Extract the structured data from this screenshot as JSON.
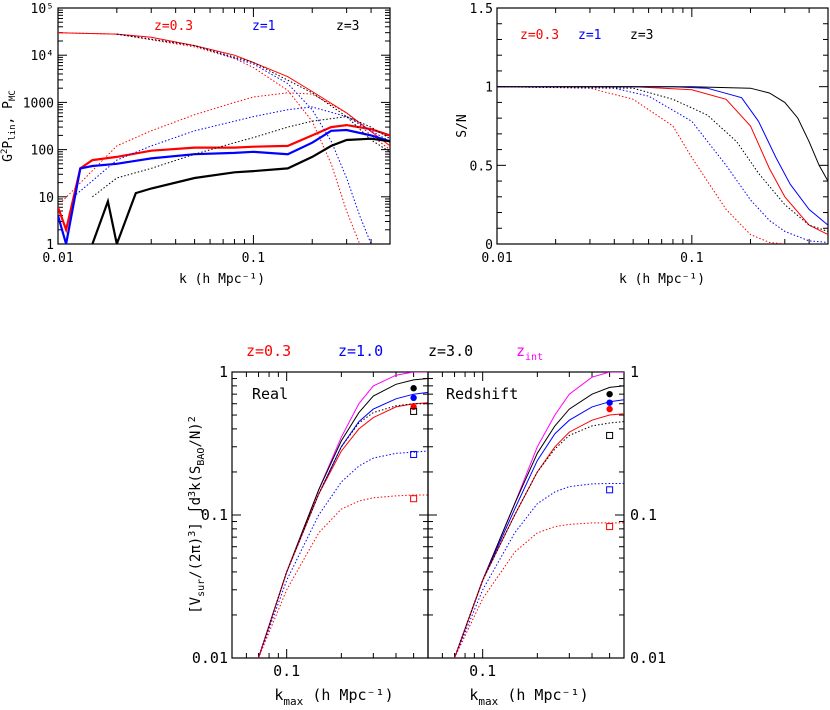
{
  "chart_data": [
    {
      "type": "line",
      "panel": "top-left",
      "xlabel": "k (h Mpc⁻¹)",
      "ylabel": "G²P_lin, P_MC",
      "xscale": "log",
      "yscale": "log",
      "xlim": [
        0.01,
        0.5
      ],
      "ylim": [
        1,
        100000
      ],
      "xticks": [
        "0.01",
        "0.1"
      ],
      "yticks": [
        "1",
        "10",
        "100",
        "1000",
        "10⁴",
        "10⁵"
      ],
      "legend": [
        "z=0.3",
        "z=1",
        "z=3"
      ],
      "colors": {
        "z=0.3": "#ff0000",
        "z=1": "#0000ff",
        "z=3": "#000000"
      },
      "series": [
        {
          "name": "z=0.3",
          "style": "solid-thin",
          "x": [
            0.01,
            0.02,
            0.03,
            0.05,
            0.08,
            0.1,
            0.15,
            0.2,
            0.3,
            0.5
          ],
          "y": [
            30000,
            28000,
            24000,
            16000,
            10000,
            7000,
            3500,
            1700,
            600,
            120
          ]
        },
        {
          "name": "z=0.3",
          "style": "dotted-damped",
          "x": [
            0.01,
            0.02,
            0.05,
            0.08,
            0.1,
            0.15,
            0.2,
            0.25,
            0.3,
            0.35
          ],
          "y": [
            30000,
            28000,
            15000,
            8500,
            5500,
            1800,
            400,
            50,
            5,
            1
          ]
        },
        {
          "name": "z=0.3",
          "style": "dotted-lower",
          "x": [
            0.0105,
            0.02,
            0.03,
            0.05,
            0.08,
            0.1,
            0.15,
            0.2,
            0.3,
            0.4,
            0.5
          ],
          "y": [
            8,
            120,
            250,
            550,
            1000,
            1300,
            1600,
            1500,
            600,
            200,
            100
          ]
        },
        {
          "name": "z=0.3",
          "style": "solid-thick",
          "x": [
            0.01,
            0.011,
            0.013,
            0.015,
            0.02,
            0.03,
            0.05,
            0.08,
            0.1,
            0.15,
            0.2,
            0.25,
            0.3,
            0.4,
            0.5
          ],
          "y": [
            6,
            2,
            40,
            60,
            70,
            95,
            110,
            110,
            115,
            120,
            200,
            300,
            330,
            270,
            200
          ]
        },
        {
          "name": "z=1",
          "style": "dotted-damped",
          "x": [
            0.02,
            0.05,
            0.1,
            0.15,
            0.2,
            0.25,
            0.3,
            0.35,
            0.4
          ],
          "y": [
            28000,
            16000,
            6500,
            2500,
            700,
            150,
            25,
            4,
            1
          ]
        },
        {
          "name": "z=1",
          "style": "dotted-lower",
          "x": [
            0.012,
            0.02,
            0.03,
            0.05,
            0.08,
            0.1,
            0.15,
            0.2,
            0.3,
            0.4,
            0.5
          ],
          "y": [
            10,
            60,
            120,
            250,
            400,
            500,
            700,
            800,
            500,
            250,
            150
          ]
        },
        {
          "name": "z=1",
          "style": "solid-thick",
          "x": [
            0.01,
            0.011,
            0.013,
            0.015,
            0.02,
            0.03,
            0.05,
            0.08,
            0.1,
            0.15,
            0.2,
            0.25,
            0.3,
            0.4,
            0.5
          ],
          "y": [
            4,
            1,
            40,
            45,
            50,
            65,
            80,
            85,
            90,
            80,
            140,
            250,
            260,
            200,
            150
          ]
        },
        {
          "name": "z=3",
          "style": "dotted-damped",
          "x": [
            0.02,
            0.05,
            0.1,
            0.2,
            0.3,
            0.4,
            0.5
          ],
          "y": [
            28000,
            16000,
            7000,
            1600,
            500,
            160,
            90
          ]
        },
        {
          "name": "z=3",
          "style": "dotted-lower",
          "x": [
            0.015,
            0.02,
            0.03,
            0.05,
            0.08,
            0.1,
            0.15,
            0.2,
            0.3,
            0.4,
            0.5
          ],
          "y": [
            10,
            25,
            40,
            80,
            140,
            180,
            300,
            400,
            500,
            300,
            170
          ]
        },
        {
          "name": "z=3",
          "style": "solid-thick",
          "x": [
            0.015,
            0.018,
            0.02,
            0.025,
            0.03,
            0.05,
            0.08,
            0.1,
            0.15,
            0.2,
            0.25,
            0.3,
            0.4,
            0.5
          ],
          "y": [
            1,
            8,
            1,
            12,
            15,
            25,
            33,
            35,
            40,
            70,
            120,
            160,
            170,
            150
          ]
        }
      ]
    },
    {
      "type": "line",
      "panel": "top-right",
      "xlabel": "k (h Mpc⁻¹)",
      "ylabel": "S/N",
      "xscale": "log",
      "xlim": [
        0.01,
        0.5
      ],
      "ylim": [
        0,
        1.5
      ],
      "xticks": [
        "0.01",
        "0.1"
      ],
      "yticks": [
        "0",
        "0.5",
        "1",
        "1.5"
      ],
      "legend": [
        "z=0.3",
        "z=1",
        "z=3"
      ],
      "series": [
        {
          "name": "z=0.3",
          "style": "solid",
          "x": [
            0.01,
            0.05,
            0.1,
            0.15,
            0.2,
            0.25,
            0.3,
            0.4,
            0.5
          ],
          "y": [
            1,
            1,
            0.98,
            0.92,
            0.75,
            0.48,
            0.3,
            0.12,
            0.06
          ]
        },
        {
          "name": "z=1",
          "style": "solid",
          "x": [
            0.01,
            0.08,
            0.12,
            0.18,
            0.22,
            0.27,
            0.32,
            0.4,
            0.5
          ],
          "y": [
            1,
            1,
            0.99,
            0.93,
            0.78,
            0.55,
            0.38,
            0.22,
            0.12
          ]
        },
        {
          "name": "z=3",
          "style": "solid",
          "x": [
            0.01,
            0.1,
            0.2,
            0.25,
            0.3,
            0.35,
            0.4,
            0.45,
            0.5
          ],
          "y": [
            1,
            1,
            0.99,
            0.96,
            0.9,
            0.8,
            0.65,
            0.5,
            0.4
          ]
        },
        {
          "name": "z=0.3",
          "style": "dotted",
          "x": [
            0.01,
            0.03,
            0.05,
            0.08,
            0.1,
            0.12,
            0.15,
            0.2,
            0.25,
            0.3
          ],
          "y": [
            1,
            0.99,
            0.92,
            0.75,
            0.55,
            0.4,
            0.22,
            0.06,
            0.01,
            0
          ]
        },
        {
          "name": "z=1",
          "style": "dotted",
          "x": [
            0.01,
            0.04,
            0.06,
            0.1,
            0.15,
            0.2,
            0.25,
            0.3,
            0.4,
            0.5
          ],
          "y": [
            1,
            0.99,
            0.94,
            0.78,
            0.5,
            0.28,
            0.15,
            0.08,
            0.02,
            0.01
          ]
        },
        {
          "name": "z=3",
          "style": "dotted",
          "x": [
            0.01,
            0.05,
            0.08,
            0.12,
            0.17,
            0.22,
            0.3,
            0.4,
            0.5
          ],
          "y": [
            1,
            0.99,
            0.92,
            0.82,
            0.65,
            0.45,
            0.25,
            0.12,
            0.08
          ]
        }
      ]
    },
    {
      "type": "line",
      "panel": "bottom-left",
      "annotation": "Real",
      "xlabel": "k_max (h Mpc⁻¹)",
      "ylabel": "[V_sur/(2π)³] ∫d³k(S_BAO/N)²",
      "xscale": "log",
      "yscale": "log",
      "xlim": [
        0.05,
        0.6
      ],
      "ylim": [
        0.01,
        1
      ],
      "xticks": [
        "0.1"
      ],
      "yticks": [
        "0.01",
        "0.1",
        "1"
      ],
      "legend": [
        "z=0.3",
        "z=1.0",
        "z=3.0",
        "z_int"
      ],
      "colors": {
        "z=0.3": "#ff0000",
        "z=1.0": "#0000ff",
        "z=3.0": "#000000",
        "z_int": "#ff00ff"
      },
      "series": [
        {
          "name": "z_int",
          "style": "solid",
          "x": [
            0.07,
            0.1,
            0.15,
            0.2,
            0.25,
            0.3,
            0.4,
            0.5,
            0.6
          ],
          "y": [
            0.01,
            0.04,
            0.15,
            0.35,
            0.6,
            0.8,
            0.95,
            1.0,
            1.0
          ]
        },
        {
          "name": "z=3.0",
          "style": "solid",
          "x": [
            0.07,
            0.1,
            0.15,
            0.2,
            0.25,
            0.3,
            0.4,
            0.5,
            0.6
          ],
          "y": [
            0.01,
            0.04,
            0.15,
            0.33,
            0.52,
            0.68,
            0.82,
            0.88,
            0.9
          ]
        },
        {
          "name": "z=1.0",
          "style": "solid",
          "x": [
            0.07,
            0.1,
            0.15,
            0.2,
            0.25,
            0.3,
            0.4,
            0.5,
            0.6
          ],
          "y": [
            0.01,
            0.04,
            0.14,
            0.3,
            0.45,
            0.55,
            0.65,
            0.7,
            0.72
          ]
        },
        {
          "name": "z=0.3",
          "style": "solid",
          "x": [
            0.07,
            0.1,
            0.15,
            0.2,
            0.25,
            0.3,
            0.4,
            0.5,
            0.6
          ],
          "y": [
            0.01,
            0.04,
            0.14,
            0.28,
            0.4,
            0.48,
            0.57,
            0.6,
            0.61
          ]
        },
        {
          "name": "z=3.0",
          "style": "dotted",
          "x": [
            0.07,
            0.1,
            0.15,
            0.2,
            0.25,
            0.3,
            0.4,
            0.5,
            0.6
          ],
          "y": [
            0.01,
            0.04,
            0.14,
            0.3,
            0.44,
            0.52,
            0.58,
            0.6,
            0.6
          ]
        },
        {
          "name": "z=1.0",
          "style": "dotted",
          "x": [
            0.07,
            0.1,
            0.15,
            0.2,
            0.25,
            0.3,
            0.4,
            0.5,
            0.6
          ],
          "y": [
            0.01,
            0.035,
            0.1,
            0.17,
            0.22,
            0.25,
            0.27,
            0.275,
            0.28
          ]
        },
        {
          "name": "z=0.3",
          "style": "dotted",
          "x": [
            0.07,
            0.1,
            0.15,
            0.2,
            0.25,
            0.3,
            0.4,
            0.5,
            0.6
          ],
          "y": [
            0.01,
            0.03,
            0.075,
            0.11,
            0.125,
            0.132,
            0.136,
            0.138,
            0.138
          ]
        }
      ],
      "points": [
        {
          "name": "z=3.0",
          "marker": "filled-circle",
          "x": 0.5,
          "y": 0.77
        },
        {
          "name": "z=1.0",
          "marker": "filled-circle",
          "x": 0.5,
          "y": 0.66
        },
        {
          "name": "z=0.3",
          "marker": "filled-circle",
          "x": 0.5,
          "y": 0.57
        },
        {
          "name": "z=3.0",
          "marker": "open-square",
          "x": 0.5,
          "y": 0.53
        },
        {
          "name": "z=1.0",
          "marker": "open-square",
          "x": 0.5,
          "y": 0.265
        },
        {
          "name": "z=0.3",
          "marker": "open-square",
          "x": 0.5,
          "y": 0.13
        }
      ]
    },
    {
      "type": "line",
      "panel": "bottom-right",
      "annotation": "Redshift",
      "xlabel": "k_max (h Mpc⁻¹)",
      "xscale": "log",
      "yscale": "log",
      "xlim": [
        0.05,
        0.6
      ],
      "ylim": [
        0.01,
        1
      ],
      "xticks": [
        "0.1"
      ],
      "yticks": [
        "0.01",
        "0.1",
        "1"
      ],
      "series": [
        {
          "name": "z_int",
          "style": "solid",
          "x": [
            0.07,
            0.1,
            0.15,
            0.2,
            0.25,
            0.3,
            0.4,
            0.5,
            0.6
          ],
          "y": [
            0.01,
            0.035,
            0.12,
            0.3,
            0.5,
            0.7,
            0.92,
            1.0,
            1.0
          ]
        },
        {
          "name": "z=3.0",
          "style": "solid",
          "x": [
            0.07,
            0.1,
            0.15,
            0.2,
            0.25,
            0.3,
            0.4,
            0.5,
            0.6
          ],
          "y": [
            0.01,
            0.035,
            0.12,
            0.27,
            0.42,
            0.55,
            0.7,
            0.78,
            0.8
          ]
        },
        {
          "name": "z=1.0",
          "style": "solid",
          "x": [
            0.07,
            0.1,
            0.15,
            0.2,
            0.25,
            0.3,
            0.4,
            0.5,
            0.6
          ],
          "y": [
            0.01,
            0.035,
            0.11,
            0.24,
            0.37,
            0.46,
            0.57,
            0.62,
            0.64
          ]
        },
        {
          "name": "z=0.3",
          "style": "solid",
          "x": [
            0.07,
            0.1,
            0.15,
            0.2,
            0.25,
            0.3,
            0.4,
            0.5,
            0.6
          ],
          "y": [
            0.01,
            0.035,
            0.1,
            0.2,
            0.3,
            0.38,
            0.46,
            0.5,
            0.51
          ]
        },
        {
          "name": "z=3.0",
          "style": "dotted",
          "x": [
            0.07,
            0.1,
            0.15,
            0.2,
            0.25,
            0.3,
            0.4,
            0.5,
            0.6
          ],
          "y": [
            0.01,
            0.035,
            0.1,
            0.2,
            0.29,
            0.36,
            0.42,
            0.44,
            0.45
          ]
        },
        {
          "name": "z=1.0",
          "style": "dotted",
          "x": [
            0.07,
            0.1,
            0.15,
            0.2,
            0.25,
            0.3,
            0.4,
            0.5,
            0.6
          ],
          "y": [
            0.01,
            0.03,
            0.075,
            0.12,
            0.145,
            0.158,
            0.165,
            0.166,
            0.166
          ]
        },
        {
          "name": "z=0.3",
          "style": "dotted",
          "x": [
            0.07,
            0.1,
            0.15,
            0.2,
            0.25,
            0.3,
            0.4,
            0.5,
            0.6
          ],
          "y": [
            0.01,
            0.026,
            0.055,
            0.075,
            0.083,
            0.086,
            0.088,
            0.088,
            0.088
          ]
        }
      ],
      "points": [
        {
          "name": "z=3.0",
          "marker": "filled-circle",
          "x": 0.5,
          "y": 0.7
        },
        {
          "name": "z=1.0",
          "marker": "filled-circle",
          "x": 0.5,
          "y": 0.61
        },
        {
          "name": "z=0.3",
          "marker": "filled-circle",
          "x": 0.5,
          "y": 0.55
        },
        {
          "name": "z=3.0",
          "marker": "open-square",
          "x": 0.5,
          "y": 0.36
        },
        {
          "name": "z=1.0",
          "marker": "open-square",
          "x": 0.5,
          "y": 0.15
        },
        {
          "name": "z=0.3",
          "marker": "open-square",
          "x": 0.5,
          "y": 0.083
        }
      ]
    }
  ],
  "labels": {
    "tl_xlabel": "k (h Mpc⁻¹)",
    "tl_ylabel_1": "G",
    "tl_ylabel_2": "2",
    "tl_ylabel_3": "P",
    "tl_ylabel_4": "lin",
    "tl_ylabel_5": ", P",
    "tl_ylabel_6": "MC",
    "tl_legend": [
      "z=0.3",
      "z=1",
      "z=3"
    ],
    "tr_xlabel": "k (h Mpc⁻¹)",
    "tr_ylabel": "S/N",
    "tr_legend": [
      "z=0.3",
      "z=1",
      "z=3"
    ],
    "b_legend": [
      "z=0.3",
      "z=1.0",
      "z=3.0",
      "z",
      "int"
    ],
    "b_real": "Real",
    "b_redshift": "Redshift",
    "b_xlabel_k": "k",
    "b_xlabel_max": "max",
    "b_xlabel_rest": " (h Mpc⁻¹)",
    "b_ylabel_1": "[V",
    "b_ylabel_2": "sur",
    "b_ylabel_3": "/(2π)",
    "b_ylabel_4": "3",
    "b_ylabel_5": "]  ∫d",
    "b_ylabel_6": "3",
    "b_ylabel_7": "k(S",
    "b_ylabel_8": "BAO",
    "b_ylabel_9": "/N)",
    "b_ylabel_10": "2"
  }
}
